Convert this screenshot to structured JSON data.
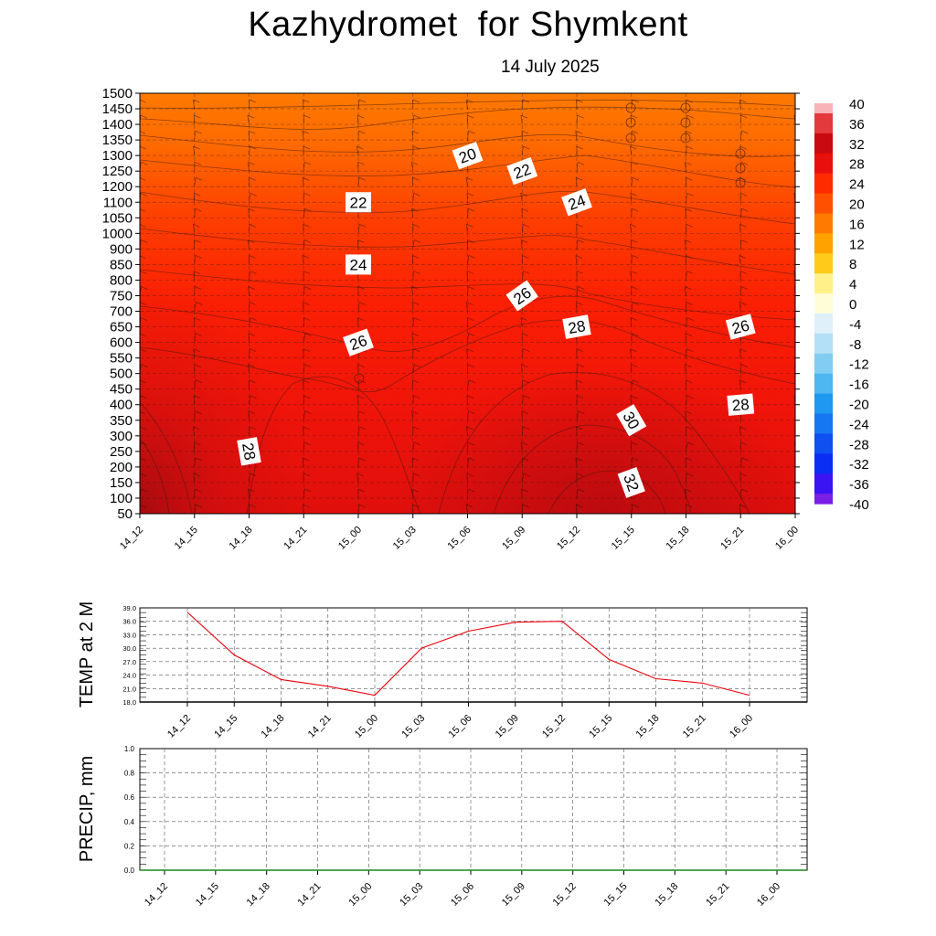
{
  "title": "Kazhydromet  for Shymkent",
  "subtitle": "14 July 2025",
  "chart_data": [
    {
      "type": "heatmap",
      "title": "Kazhydromet  for Shymkent",
      "subtitle": "14 July 2025",
      "x_ticks": [
        "14_12",
        "14_15",
        "14_18",
        "14_21",
        "15_00",
        "15_03",
        "15_06",
        "15_09",
        "15_12",
        "15_15",
        "15_18",
        "15_21",
        "16_00"
      ],
      "y_ticks": [
        1500,
        1450,
        1400,
        1350,
        1300,
        1250,
        1200,
        1100,
        1050,
        1000,
        900,
        850,
        800,
        750,
        700,
        650,
        600,
        550,
        500,
        450,
        400,
        350,
        300,
        250,
        200,
        150,
        100,
        50
      ],
      "colorbar_labels": [
        "40",
        "36",
        "32",
        "28",
        "24",
        "20",
        "16",
        "12",
        "8",
        "4",
        "0",
        "-4",
        "-8",
        "-12",
        "-16",
        "-20",
        "-24",
        "-28",
        "-32",
        "-36",
        "-40"
      ],
      "colorbar_colors": [
        "#f7b3b8",
        "#e23a3d",
        "#c90a10",
        "#e8100c",
        "#fe2a00",
        "#fe5000",
        "#ff7a00",
        "#ffa200",
        "#ffca1a",
        "#fff08a",
        "#fffdd8",
        "#dff0fb",
        "#b4e0f7",
        "#82ccf2",
        "#4eb6f0",
        "#1e98f0",
        "#1677f2",
        "#1050f0",
        "#0b2ef5",
        "#3a14f2",
        "#7a1fe6"
      ],
      "contour_labels": [
        {
          "label": "20",
          "x": "15_06",
          "y": 1300
        },
        {
          "label": "22",
          "x": "15_09",
          "y": 1250
        },
        {
          "label": "22",
          "x": "15_00",
          "y": 1100
        },
        {
          "label": "24",
          "x": "15_12",
          "y": 1100
        },
        {
          "label": "24",
          "x": "15_00",
          "y": 850
        },
        {
          "label": "26",
          "x": "15_09",
          "y": 750
        },
        {
          "label": "26",
          "x": "15_00",
          "y": 600
        },
        {
          "label": "28",
          "x": "15_12",
          "y": 650
        },
        {
          "label": "26",
          "x": "15_21",
          "y": 650
        },
        {
          "label": "28",
          "x": "15_21",
          "y": 400
        },
        {
          "label": "30",
          "x": "15_15",
          "y": 350
        },
        {
          "label": "28",
          "x": "14_18",
          "y": 250
        },
        {
          "label": "32",
          "x": "15_15",
          "y": 150
        }
      ]
    },
    {
      "type": "line",
      "ylabel": "TEMP at 2 M",
      "x": [
        "14_12",
        "14_15",
        "14_18",
        "14_21",
        "15_00",
        "15_03",
        "15_06",
        "15_09",
        "15_12",
        "15_15",
        "15_18",
        "15_21",
        "16_00"
      ],
      "series": [
        {
          "values": [
            38.0,
            28.5,
            23.0,
            21.5,
            19.5,
            30.0,
            33.8,
            35.8,
            36.0,
            27.5,
            23.2,
            22.2,
            19.5
          ]
        }
      ],
      "ylim": [
        18.0,
        39.0
      ],
      "y_ticks": [
        "18.0",
        "21.0",
        "24.0",
        "27.0",
        "30.0",
        "33.0",
        "36.0",
        "39.0"
      ],
      "line_color": "#e8000b"
    },
    {
      "type": "line",
      "ylabel": "PRECIP, mm",
      "x": [
        "14_12",
        "14_15",
        "14_18",
        "14_21",
        "15_00",
        "15_03",
        "15_06",
        "15_09",
        "15_12",
        "15_15",
        "15_18",
        "15_21",
        "16_00"
      ],
      "series": [
        {
          "values": [
            0,
            0,
            0,
            0,
            0,
            0,
            0,
            0,
            0,
            0,
            0,
            0,
            0
          ]
        }
      ],
      "ylim": [
        0.0,
        1.0
      ],
      "y_ticks": [
        "0.0",
        "0.2",
        "0.4",
        "0.6",
        "0.8",
        "1.0"
      ],
      "line_color": "#1a8a1a"
    }
  ]
}
